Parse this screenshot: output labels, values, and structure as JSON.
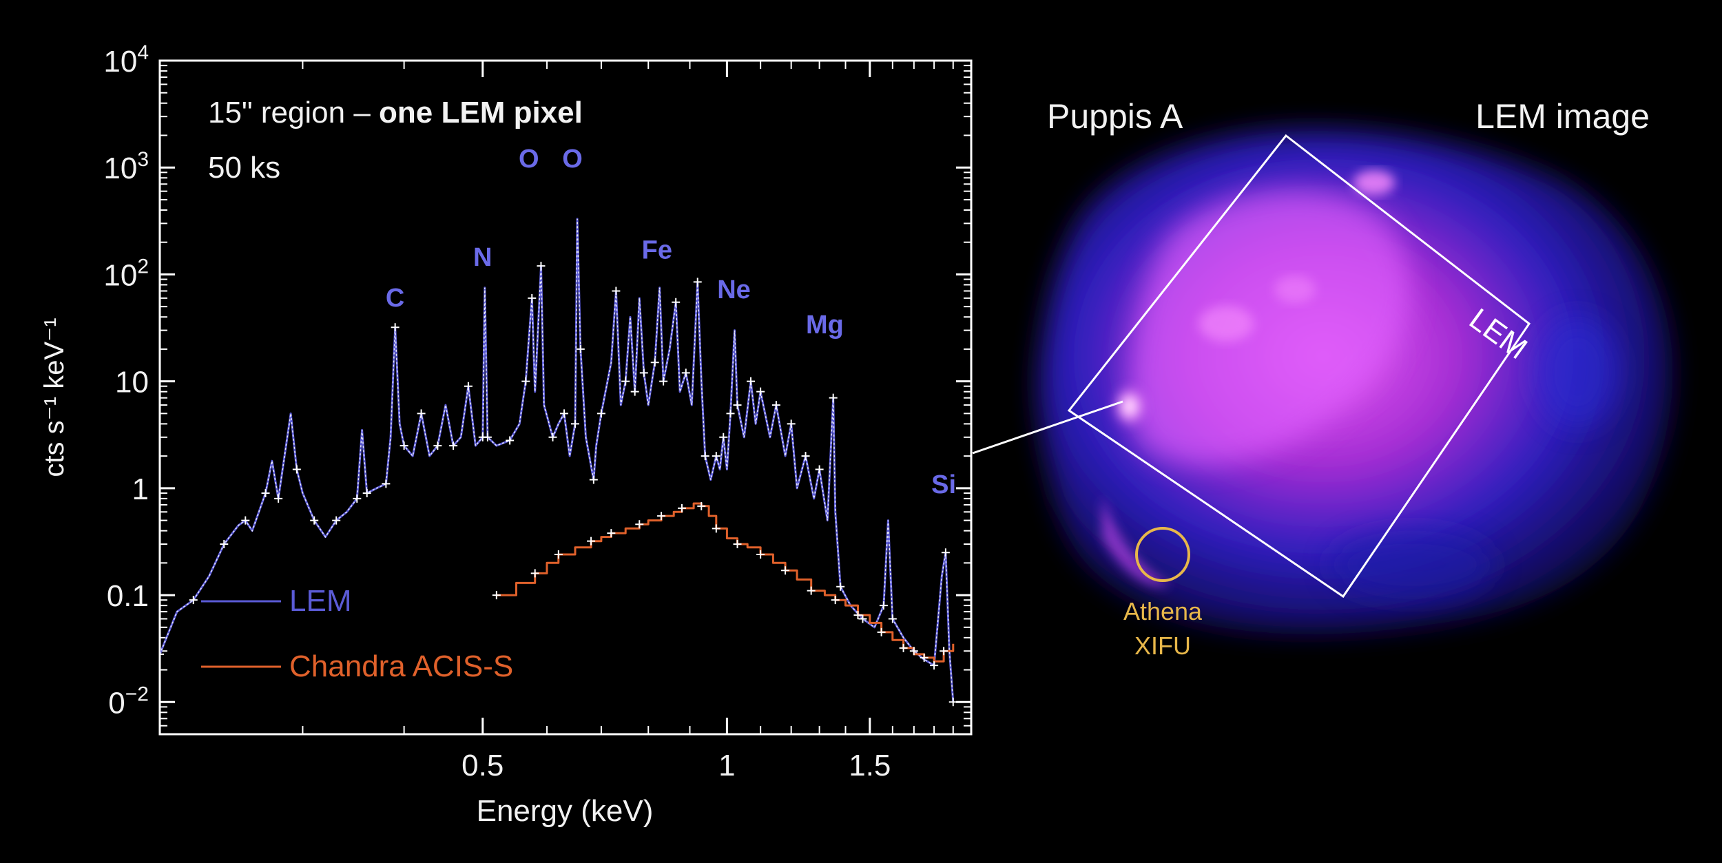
{
  "chart_data": {
    "type": "line",
    "x_scale": "log",
    "y_scale": "log",
    "xlabel": "Energy (keV)",
    "ylabel": "cts s⁻¹ keV⁻¹",
    "xlim": [
      0.2,
      2.0
    ],
    "ylim": [
      0.005,
      10000
    ],
    "x_ticks": [
      {
        "value": 0.5,
        "label": "0.5"
      },
      {
        "value": 1.0,
        "label": "1"
      },
      {
        "value": 1.5,
        "label": "1.5"
      }
    ],
    "y_ticks": [
      {
        "value": 10000,
        "base": "10",
        "exp": "4"
      },
      {
        "value": 1000,
        "base": "10",
        "exp": "3"
      },
      {
        "value": 100,
        "base": "10",
        "exp": "2"
      },
      {
        "value": 10,
        "base": "10",
        "exp": ""
      },
      {
        "value": 1,
        "base": "1",
        "exp": ""
      },
      {
        "value": 0.1,
        "base": "0.1",
        "exp": ""
      },
      {
        "value": 0.01,
        "base": "0",
        "exp": "−2"
      }
    ],
    "annotation_line1_normal": "15\" region – ",
    "annotation_line1_bold": "one LEM pixel",
    "annotation_line2": "50 ks",
    "line_labels": [
      {
        "label": "C",
        "x": 0.39,
        "y": 50
      },
      {
        "label": "N",
        "x": 0.5,
        "y": 120
      },
      {
        "label": "O",
        "x": 0.57,
        "y": 1000
      },
      {
        "label": "O",
        "x": 0.645,
        "y": 1000
      },
      {
        "label": "Fe",
        "x": 0.82,
        "y": 140
      },
      {
        "label": "Ne",
        "x": 1.02,
        "y": 60
      },
      {
        "label": "Mg",
        "x": 1.32,
        "y": 28
      },
      {
        "label": "Si",
        "x": 1.85,
        "y": 0.9
      }
    ],
    "series": [
      {
        "name": "LEM",
        "color": "#5b5bd6",
        "points": [
          [
            0.2,
            0.028
          ],
          [
            0.21,
            0.07
          ],
          [
            0.22,
            0.09
          ],
          [
            0.23,
            0.15
          ],
          [
            0.24,
            0.3
          ],
          [
            0.25,
            0.45
          ],
          [
            0.255,
            0.5
          ],
          [
            0.26,
            0.4
          ],
          [
            0.27,
            0.9
          ],
          [
            0.275,
            1.8
          ],
          [
            0.28,
            0.8
          ],
          [
            0.29,
            5.0
          ],
          [
            0.295,
            1.5
          ],
          [
            0.3,
            0.9
          ],
          [
            0.31,
            0.5
          ],
          [
            0.32,
            0.35
          ],
          [
            0.33,
            0.5
          ],
          [
            0.34,
            0.6
          ],
          [
            0.35,
            0.8
          ],
          [
            0.355,
            3.5
          ],
          [
            0.36,
            0.9
          ],
          [
            0.37,
            1.0
          ],
          [
            0.38,
            1.1
          ],
          [
            0.385,
            3.0
          ],
          [
            0.39,
            32
          ],
          [
            0.395,
            4.0
          ],
          [
            0.4,
            2.5
          ],
          [
            0.41,
            2.0
          ],
          [
            0.42,
            5.0
          ],
          [
            0.43,
            2.0
          ],
          [
            0.44,
            2.5
          ],
          [
            0.45,
            6.0
          ],
          [
            0.46,
            2.5
          ],
          [
            0.47,
            3.0
          ],
          [
            0.48,
            9.0
          ],
          [
            0.49,
            2.5
          ],
          [
            0.5,
            3.0
          ],
          [
            0.503,
            75
          ],
          [
            0.507,
            3.0
          ],
          [
            0.52,
            2.5
          ],
          [
            0.54,
            2.8
          ],
          [
            0.555,
            4.0
          ],
          [
            0.565,
            10
          ],
          [
            0.57,
            25
          ],
          [
            0.575,
            60
          ],
          [
            0.58,
            8.0
          ],
          [
            0.59,
            120
          ],
          [
            0.595,
            6.0
          ],
          [
            0.61,
            3.0
          ],
          [
            0.62,
            4.0
          ],
          [
            0.63,
            5.0
          ],
          [
            0.64,
            2.0
          ],
          [
            0.65,
            4.0
          ],
          [
            0.654,
            330
          ],
          [
            0.66,
            20
          ],
          [
            0.67,
            3.0
          ],
          [
            0.685,
            1.2
          ],
          [
            0.69,
            2.5
          ],
          [
            0.7,
            5.0
          ],
          [
            0.72,
            15
          ],
          [
            0.73,
            70
          ],
          [
            0.74,
            6.0
          ],
          [
            0.75,
            10
          ],
          [
            0.76,
            40
          ],
          [
            0.77,
            8.0
          ],
          [
            0.78,
            60
          ],
          [
            0.79,
            12
          ],
          [
            0.8,
            6.0
          ],
          [
            0.815,
            15
          ],
          [
            0.826,
            75
          ],
          [
            0.835,
            10
          ],
          [
            0.85,
            20
          ],
          [
            0.865,
            55
          ],
          [
            0.875,
            8.0
          ],
          [
            0.89,
            12
          ],
          [
            0.905,
            6.0
          ],
          [
            0.92,
            85
          ],
          [
            0.93,
            10
          ],
          [
            0.94,
            2.0
          ],
          [
            0.955,
            1.2
          ],
          [
            0.97,
            2.0
          ],
          [
            0.98,
            1.5
          ],
          [
            0.99,
            3.0
          ],
          [
            1.0,
            1.5
          ],
          [
            1.01,
            5.0
          ],
          [
            1.022,
            30
          ],
          [
            1.03,
            6.0
          ],
          [
            1.05,
            3.0
          ],
          [
            1.07,
            10
          ],
          [
            1.085,
            4.0
          ],
          [
            1.1,
            8.0
          ],
          [
            1.13,
            3.0
          ],
          [
            1.15,
            6.0
          ],
          [
            1.18,
            2.0
          ],
          [
            1.2,
            4.0
          ],
          [
            1.22,
            1.0
          ],
          [
            1.25,
            2.0
          ],
          [
            1.28,
            0.8
          ],
          [
            1.3,
            1.5
          ],
          [
            1.33,
            0.5
          ],
          [
            1.352,
            7.0
          ],
          [
            1.36,
            0.6
          ],
          [
            1.38,
            0.12
          ],
          [
            1.42,
            0.08
          ],
          [
            1.47,
            0.06
          ],
          [
            1.52,
            0.05
          ],
          [
            1.56,
            0.08
          ],
          [
            1.58,
            0.5
          ],
          [
            1.6,
            0.06
          ],
          [
            1.65,
            0.04
          ],
          [
            1.7,
            0.03
          ],
          [
            1.75,
            0.025
          ],
          [
            1.8,
            0.022
          ],
          [
            1.84,
            0.15
          ],
          [
            1.86,
            0.25
          ],
          [
            1.88,
            0.03
          ],
          [
            1.9,
            0.01
          ]
        ]
      },
      {
        "name": "Chandra ACIS-S",
        "color": "#e0612b",
        "points": [
          [
            0.52,
            0.1
          ],
          [
            0.55,
            0.13
          ],
          [
            0.58,
            0.16
          ],
          [
            0.6,
            0.2
          ],
          [
            0.62,
            0.24
          ],
          [
            0.65,
            0.28
          ],
          [
            0.68,
            0.32
          ],
          [
            0.7,
            0.35
          ],
          [
            0.72,
            0.38
          ],
          [
            0.75,
            0.42
          ],
          [
            0.78,
            0.46
          ],
          [
            0.8,
            0.5
          ],
          [
            0.83,
            0.55
          ],
          [
            0.86,
            0.6
          ],
          [
            0.88,
            0.65
          ],
          [
            0.91,
            0.72
          ],
          [
            0.93,
            0.68
          ],
          [
            0.95,
            0.55
          ],
          [
            0.97,
            0.42
          ],
          [
            1.0,
            0.34
          ],
          [
            1.03,
            0.3
          ],
          [
            1.06,
            0.28
          ],
          [
            1.1,
            0.24
          ],
          [
            1.14,
            0.2
          ],
          [
            1.18,
            0.17
          ],
          [
            1.22,
            0.14
          ],
          [
            1.27,
            0.11
          ],
          [
            1.32,
            0.1
          ],
          [
            1.36,
            0.09
          ],
          [
            1.4,
            0.08
          ],
          [
            1.45,
            0.065
          ],
          [
            1.5,
            0.055
          ],
          [
            1.55,
            0.045
          ],
          [
            1.6,
            0.038
          ],
          [
            1.65,
            0.032
          ],
          [
            1.7,
            0.028
          ],
          [
            1.75,
            0.026
          ],
          [
            1.8,
            0.024
          ],
          [
            1.85,
            0.03
          ],
          [
            1.9,
            0.035
          ]
        ]
      }
    ],
    "legend": [
      {
        "name": "LEM",
        "color": "#5b5bd6"
      },
      {
        "name": "Chandra ACIS-S",
        "color": "#e0612b"
      }
    ]
  },
  "image_panel": {
    "title_left": "Puppis A",
    "title_right": "LEM image",
    "lem_box_label": "LEM",
    "athena_label_line1": "Athena",
    "athena_label_line2": "XIFU",
    "athena_color": "#e8b74a"
  }
}
